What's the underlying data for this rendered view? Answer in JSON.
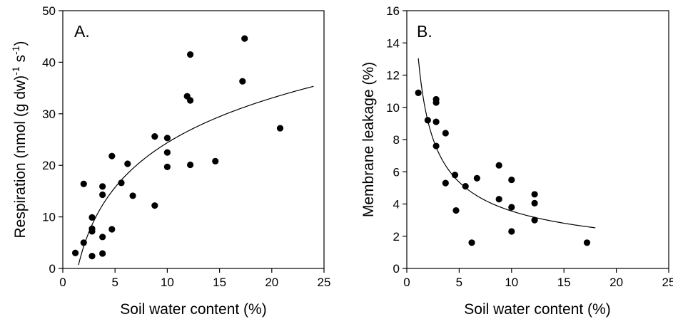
{
  "chart_data": [
    {
      "type": "scatter",
      "panel_label": "A.",
      "xlabel": "Soil water content (%)",
      "ylabel_main": "Respiration (nmol (g dw)",
      "ylabel_sup1": "-1",
      "ylabel_mid": " s",
      "ylabel_sup2": "-1",
      "ylabel_end": ")",
      "xlim": [
        0,
        25
      ],
      "ylim": [
        0,
        50
      ],
      "xticks": [
        0,
        5,
        10,
        15,
        20,
        25
      ],
      "yticks": [
        0,
        10,
        20,
        30,
        40,
        50
      ],
      "grid": false,
      "points": [
        {
          "x": 1.2,
          "y": 3.0
        },
        {
          "x": 2.0,
          "y": 16.4
        },
        {
          "x": 2.0,
          "y": 5.0
        },
        {
          "x": 2.8,
          "y": 2.4
        },
        {
          "x": 2.8,
          "y": 7.2
        },
        {
          "x": 2.8,
          "y": 7.7
        },
        {
          "x": 2.8,
          "y": 9.9
        },
        {
          "x": 3.8,
          "y": 6.1
        },
        {
          "x": 3.8,
          "y": 15.9
        },
        {
          "x": 3.8,
          "y": 14.3
        },
        {
          "x": 3.8,
          "y": 2.9
        },
        {
          "x": 4.7,
          "y": 7.6
        },
        {
          "x": 4.7,
          "y": 21.8
        },
        {
          "x": 5.6,
          "y": 16.6
        },
        {
          "x": 6.2,
          "y": 20.3
        },
        {
          "x": 6.7,
          "y": 14.1
        },
        {
          "x": 8.8,
          "y": 25.6
        },
        {
          "x": 8.8,
          "y": 12.2
        },
        {
          "x": 10.0,
          "y": 25.3
        },
        {
          "x": 10.0,
          "y": 22.5
        },
        {
          "x": 10.0,
          "y": 19.7
        },
        {
          "x": 11.9,
          "y": 33.4
        },
        {
          "x": 12.2,
          "y": 41.5
        },
        {
          "x": 12.2,
          "y": 32.6
        },
        {
          "x": 12.2,
          "y": 20.1
        },
        {
          "x": 14.6,
          "y": 20.8
        },
        {
          "x": 17.2,
          "y": 36.3
        },
        {
          "x": 17.4,
          "y": 44.6
        },
        {
          "x": 20.8,
          "y": 27.2
        }
      ],
      "fit": {
        "model": "logarithmic",
        "a": -4.4,
        "b": 12.5,
        "x_range": [
          1.5,
          24
        ]
      }
    },
    {
      "type": "scatter",
      "panel_label": "B.",
      "xlabel": "Soil water content (%)",
      "ylabel": "Membrane leakage (%)",
      "xlim": [
        0,
        25
      ],
      "ylim": [
        0,
        16
      ],
      "xticks": [
        0,
        5,
        10,
        15,
        20,
        25
      ],
      "yticks": [
        0,
        2,
        4,
        6,
        8,
        10,
        12,
        14,
        16
      ],
      "grid": false,
      "points": [
        {
          "x": 1.1,
          "y": 10.9
        },
        {
          "x": 2.0,
          "y": 9.2
        },
        {
          "x": 2.8,
          "y": 10.5
        },
        {
          "x": 2.8,
          "y": 10.3
        },
        {
          "x": 2.8,
          "y": 9.1
        },
        {
          "x": 2.8,
          "y": 7.6
        },
        {
          "x": 3.7,
          "y": 8.4
        },
        {
          "x": 3.7,
          "y": 5.3
        },
        {
          "x": 4.6,
          "y": 5.8
        },
        {
          "x": 4.7,
          "y": 3.6
        },
        {
          "x": 5.6,
          "y": 5.1
        },
        {
          "x": 6.2,
          "y": 1.6
        },
        {
          "x": 6.7,
          "y": 5.6
        },
        {
          "x": 8.8,
          "y": 6.4
        },
        {
          "x": 8.8,
          "y": 4.3
        },
        {
          "x": 10.0,
          "y": 5.5
        },
        {
          "x": 10.0,
          "y": 3.8
        },
        {
          "x": 10.0,
          "y": 2.3
        },
        {
          "x": 12.2,
          "y": 4.6
        },
        {
          "x": 12.2,
          "y": 4.05
        },
        {
          "x": 12.2,
          "y": 3.0
        },
        {
          "x": 17.2,
          "y": 1.6
        }
      ],
      "fit": {
        "model": "power",
        "a": 13.8,
        "b": -0.588,
        "x_range": [
          1.1,
          18
        ]
      }
    }
  ]
}
